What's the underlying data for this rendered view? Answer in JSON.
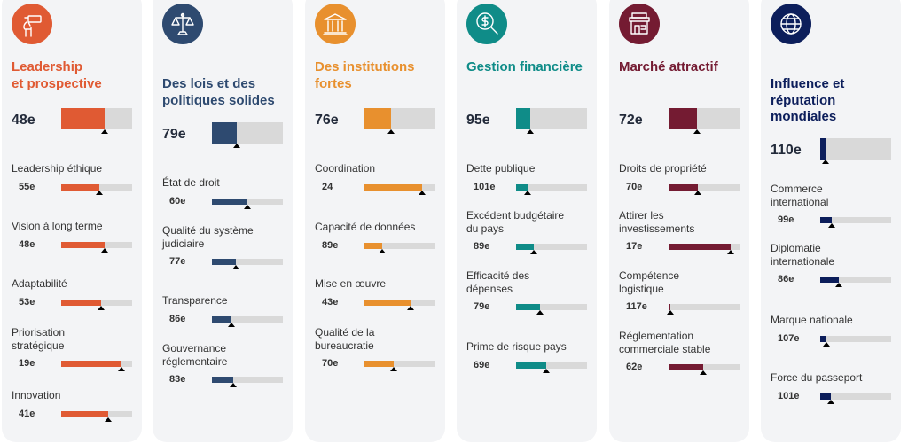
{
  "cards": [
    {
      "id": "leadership",
      "icon": "telescope-icon",
      "color": "#e05a33",
      "title": [
        "Leadership",
        "et prospective"
      ],
      "rank": "48e",
      "fill": 0.61,
      "items": [
        {
          "label": [
            "Leadership éthique"
          ],
          "value": "55e",
          "fill": 0.54
        },
        {
          "label": [
            "Vision à long terme"
          ],
          "value": "48e",
          "fill": 0.61
        },
        {
          "label": [
            "Adaptabilité"
          ],
          "value": "53e",
          "fill": 0.56
        },
        {
          "label": [
            "Priorisation",
            "stratégique"
          ],
          "value": "19e",
          "fill": 0.85
        },
        {
          "label": [
            "Innovation"
          ],
          "value": "41e",
          "fill": 0.66
        }
      ]
    },
    {
      "id": "lois",
      "icon": "scales-icon",
      "color": "#2e4a70",
      "title": [
        "Des lois et des",
        "politiques solides"
      ],
      "rank": "79e",
      "fill": 0.35,
      "items": [
        {
          "label": [
            "État de droit"
          ],
          "value": "60e",
          "fill": 0.5
        },
        {
          "label": [
            "Qualité du système",
            "judiciaire"
          ],
          "value": "77e",
          "fill": 0.34
        },
        {
          "label": [
            "Transparence"
          ],
          "value": "86e",
          "fill": 0.28
        },
        {
          "label": [
            "Gouvernance",
            "réglementaire"
          ],
          "value": "83e",
          "fill": 0.3
        }
      ]
    },
    {
      "id": "institutions",
      "icon": "institution-building-icon",
      "color": "#e8902e",
      "title": [
        "Des institutions",
        "fortes"
      ],
      "rank": "76e",
      "fill": 0.37,
      "items": [
        {
          "label": [
            "Coordination"
          ],
          "value": "24",
          "fill": 0.81
        },
        {
          "label": [
            "Capacité de données"
          ],
          "value": "89e",
          "fill": 0.25
        },
        {
          "label": [
            "Mise en œuvre"
          ],
          "value": "43e",
          "fill": 0.65
        },
        {
          "label": [
            "Qualité de la",
            "bureaucratie"
          ],
          "value": "70e",
          "fill": 0.41
        }
      ]
    },
    {
      "id": "finance",
      "icon": "dollar-magnifier-icon",
      "color": "#0f8c88",
      "title": [
        "Gestion financière"
      ],
      "rank": "95e",
      "fill": 0.2,
      "items": [
        {
          "label": [
            "Dette publique"
          ],
          "value": "101e",
          "fill": 0.16
        },
        {
          "label": [
            "Excédent budgétaire",
            "du pays"
          ],
          "value": "89e",
          "fill": 0.25
        },
        {
          "label": [
            "Efficacité des",
            "dépenses"
          ],
          "value": "79e",
          "fill": 0.34
        },
        {
          "label": [
            "Prime de risque pays"
          ],
          "value": "69e",
          "fill": 0.42
        }
      ]
    },
    {
      "id": "marche",
      "icon": "storefront-icon",
      "color": "#741b32",
      "title": [
        "Marché attractif"
      ],
      "rank": "72e",
      "fill": 0.4,
      "items": [
        {
          "label": [
            "Droits de propriété"
          ],
          "value": "70e",
          "fill": 0.41
        },
        {
          "label": [
            "Attirer les",
            "investissements"
          ],
          "value": "17e",
          "fill": 0.87
        },
        {
          "label": [
            "Compétence",
            "logistique"
          ],
          "value": "117e",
          "fill": 0.03
        },
        {
          "label": [
            "Réglementation",
            "commerciale stable"
          ],
          "value": "62e",
          "fill": 0.49
        }
      ]
    },
    {
      "id": "influence",
      "icon": "globe-icon",
      "color": "#0c1e5b",
      "title": [
        "Influence et",
        "réputation",
        "mondiales"
      ],
      "rank": "110e",
      "fill": 0.08,
      "items": [
        {
          "label": [
            "Commerce",
            "international"
          ],
          "value": "99e",
          "fill": 0.16
        },
        {
          "label": [
            "Diplomatie",
            "internationale"
          ],
          "value": "86e",
          "fill": 0.26
        },
        {
          "label": [
            "Marque nationale"
          ],
          "value": "107e",
          "fill": 0.09
        },
        {
          "label": [
            "Force du passeport"
          ],
          "value": "101e",
          "fill": 0.15
        }
      ]
    }
  ]
}
